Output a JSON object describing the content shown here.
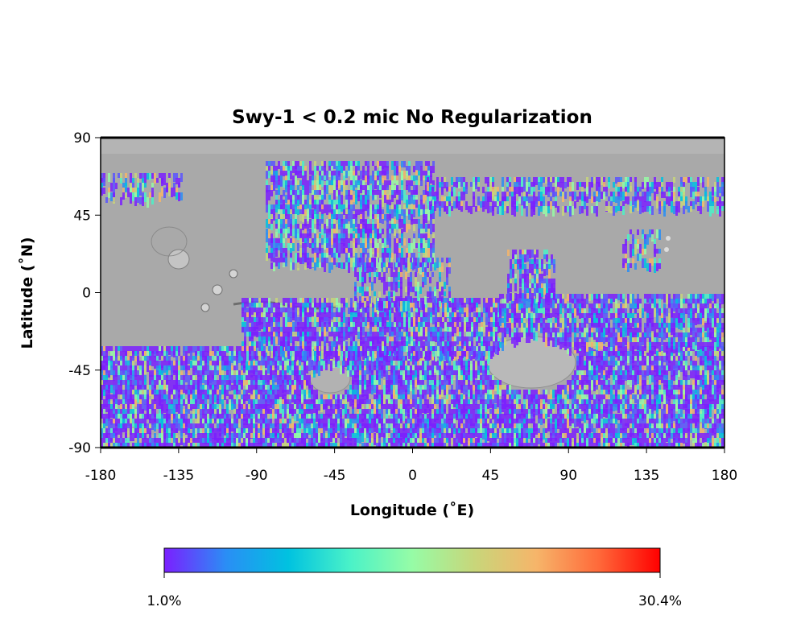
{
  "map": {
    "title": "Swy-1 < 0.2 mic No Regularization",
    "xlabel": "Longitude (˚E)",
    "ylabel": "Latitude (˚N)",
    "x_ticks": [
      "-180",
      "-135",
      "-90",
      "-45",
      "0",
      "45",
      "90",
      "135",
      "180"
    ],
    "y_ticks": [
      "90",
      "45",
      "0",
      "-45",
      "-90"
    ],
    "xlim": [
      -180,
      180
    ],
    "ylim": [
      -90,
      90
    ],
    "basemap": "grayscale shaded-relief Mars surface",
    "overlay": "per-pixel abundance, rainbow colormap, absent over gray areas"
  },
  "colorbar": {
    "min_label": "1.0%",
    "max_label": "30.4%",
    "min_value": 1.0,
    "max_value": 30.4,
    "colors": [
      "#7b1fff",
      "#2a8ef5",
      "#00c2e0",
      "#4af2c8",
      "#96fca6",
      "#c8d67a",
      "#f6b56a",
      "#ff6a3a",
      "#ff0000"
    ]
  }
}
